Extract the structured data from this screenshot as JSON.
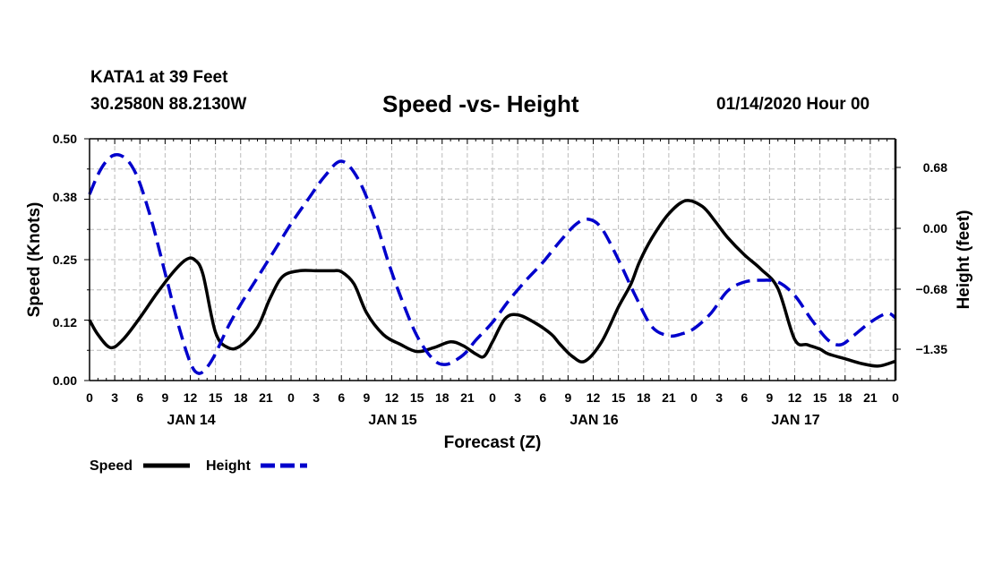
{
  "header": {
    "station": "KATA1 at 39 Feet",
    "coords": "30.2580N 88.2130W",
    "title": "Speed -vs- Height",
    "issued": "01/14/2020 Hour 00"
  },
  "chart_data": {
    "type": "line",
    "title": "Speed -vs- Height",
    "xlabel": "Forecast (Z)",
    "ylabel": "Speed (Knots)",
    "y2label": "Height (feet)",
    "xlim": [
      0,
      96
    ],
    "ylim": [
      0,
      0.5
    ],
    "y2lim": [
      -1.7,
      1.0
    ],
    "yticks": [
      0.0,
      0.12,
      0.25,
      0.38,
      0.5
    ],
    "ytick_labels": [
      "0.00",
      "0.12",
      "0.25",
      "0.38",
      "0.50"
    ],
    "y2ticks": [
      -1.35,
      -0.68,
      0.0,
      0.68
    ],
    "y2tick_labels": [
      "−1.35",
      "−0.68",
      "0.00",
      "0.68"
    ],
    "x_tick_labels": [
      "0",
      "3",
      "6",
      "9",
      "12",
      "15",
      "18",
      "21",
      "0",
      "3",
      "6",
      "9",
      "12",
      "15",
      "18",
      "21",
      "0",
      "3",
      "6",
      "9",
      "12",
      "15",
      "18",
      "21",
      "0",
      "3",
      "6",
      "9",
      "12",
      "15",
      "18",
      "21",
      "0"
    ],
    "day_labels": [
      {
        "hour": 12,
        "label": "JAN 14"
      },
      {
        "hour": 36,
        "label": "JAN 15"
      },
      {
        "hour": 60,
        "label": "JAN 16"
      },
      {
        "hour": 84,
        "label": "JAN 17"
      }
    ],
    "grid": true,
    "series": [
      {
        "name": "Speed",
        "axis": "left",
        "color": "#000000",
        "dash": "solid",
        "x": [
          0,
          1,
          2.5,
          4,
          6,
          8,
          10,
          11.5,
          12.5,
          13.5,
          15,
          16.5,
          18,
          20,
          21.5,
          23,
          25,
          27,
          28,
          29,
          30,
          31.5,
          33,
          35,
          37,
          39,
          41,
          43,
          44.5,
          46,
          47,
          48,
          49.5,
          51,
          53,
          55,
          56,
          57.5,
          59,
          61,
          63,
          64.5,
          65.5,
          67,
          69,
          71,
          73,
          74.5,
          76,
          78,
          80,
          82,
          84,
          85.5,
          87,
          88,
          90,
          92,
          94,
          96
        ],
        "values": [
          0.125,
          0.095,
          0.068,
          0.085,
          0.13,
          0.18,
          0.225,
          0.25,
          0.25,
          0.22,
          0.1,
          0.068,
          0.072,
          0.11,
          0.17,
          0.215,
          0.227,
          0.227,
          0.227,
          0.227,
          0.225,
          0.2,
          0.14,
          0.095,
          0.075,
          0.06,
          0.068,
          0.08,
          0.072,
          0.055,
          0.05,
          0.08,
          0.128,
          0.136,
          0.12,
          0.096,
          0.076,
          0.05,
          0.04,
          0.08,
          0.152,
          0.2,
          0.245,
          0.295,
          0.345,
          0.372,
          0.36,
          0.33,
          0.296,
          0.26,
          0.23,
          0.19,
          0.085,
          0.074,
          0.065,
          0.055,
          0.045,
          0.035,
          0.03,
          0.04
        ],
        "legend": "Speed"
      },
      {
        "name": "Height",
        "axis": "right",
        "color": "#0000cc",
        "dash": "dashed",
        "x": [
          0,
          1,
          2,
          3,
          4,
          5,
          6,
          7.5,
          9,
          10.5,
          12,
          13,
          14,
          15,
          16.5,
          18,
          20,
          22,
          24,
          26,
          28,
          30,
          32,
          34,
          35.5,
          37,
          39,
          41,
          42.5,
          44,
          45,
          46,
          48,
          50,
          52,
          54,
          56,
          58,
          59.5,
          61,
          63,
          65,
          67,
          69,
          70.5,
          72,
          74,
          76,
          78,
          80,
          82,
          84,
          86,
          88,
          89.5,
          91,
          93,
          95,
          96
        ],
        "values": [
          0.38,
          0.6,
          0.75,
          0.82,
          0.8,
          0.7,
          0.5,
          0.05,
          -0.5,
          -1.05,
          -1.5,
          -1.62,
          -1.55,
          -1.4,
          -1.1,
          -0.85,
          -0.55,
          -0.25,
          0.05,
          0.32,
          0.58,
          0.75,
          0.55,
          0.1,
          -0.35,
          -0.75,
          -1.2,
          -1.47,
          -1.52,
          -1.45,
          -1.37,
          -1.25,
          -1.05,
          -0.8,
          -0.58,
          -0.38,
          -0.15,
          0.05,
          0.1,
          0.0,
          -0.35,
          -0.75,
          -1.1,
          -1.2,
          -1.18,
          -1.12,
          -0.95,
          -0.7,
          -0.6,
          -0.58,
          -0.6,
          -0.75,
          -1.02,
          -1.25,
          -1.3,
          -1.2,
          -1.05,
          -0.95,
          -1.0
        ],
        "legend": "Height"
      }
    ]
  }
}
